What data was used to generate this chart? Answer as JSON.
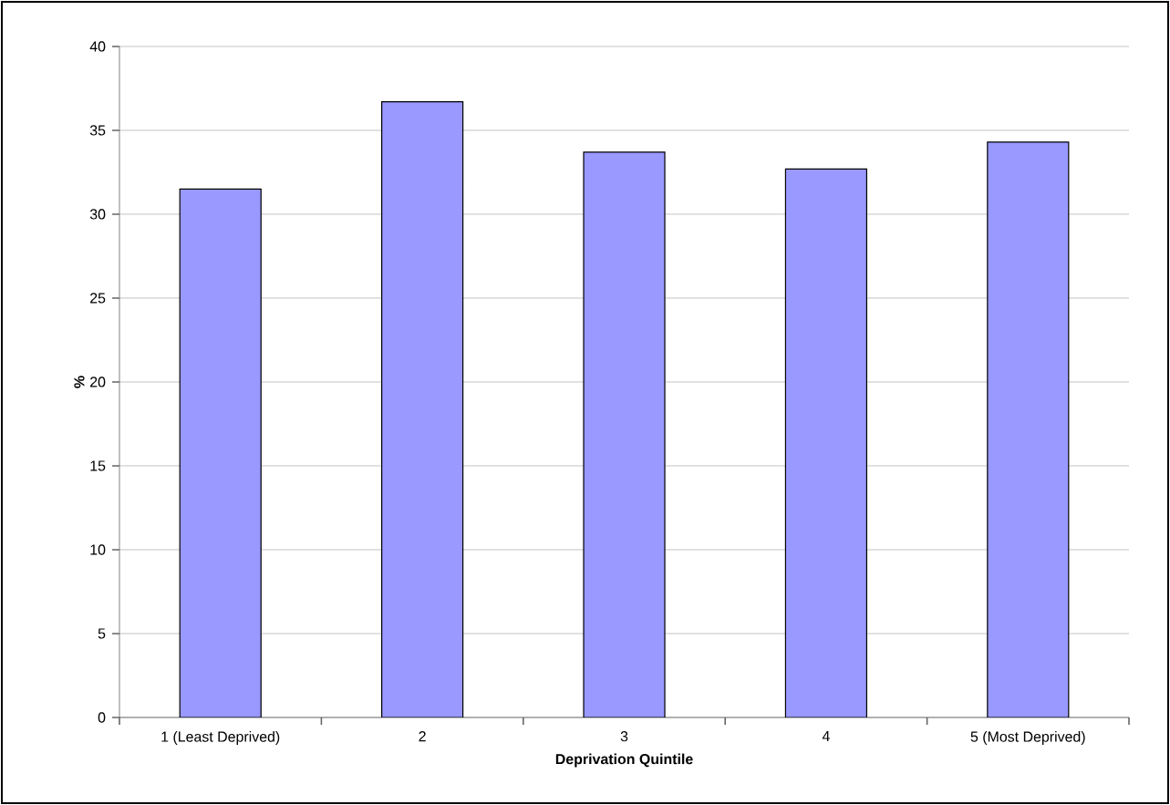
{
  "chart_data": {
    "type": "bar",
    "xlabel": "Deprivation Quintile",
    "ylabel": "%",
    "categories": [
      "1 (Least Deprived)",
      "2",
      "3",
      "4",
      "5 (Most Deprived)"
    ],
    "values": [
      31.5,
      36.7,
      33.7,
      32.7,
      34.3
    ],
    "color": "#9999ff",
    "ylim": [
      0,
      40
    ],
    "yticks": [
      0,
      5,
      10,
      15,
      20,
      25,
      30,
      35,
      40
    ],
    "grid": "y"
  }
}
